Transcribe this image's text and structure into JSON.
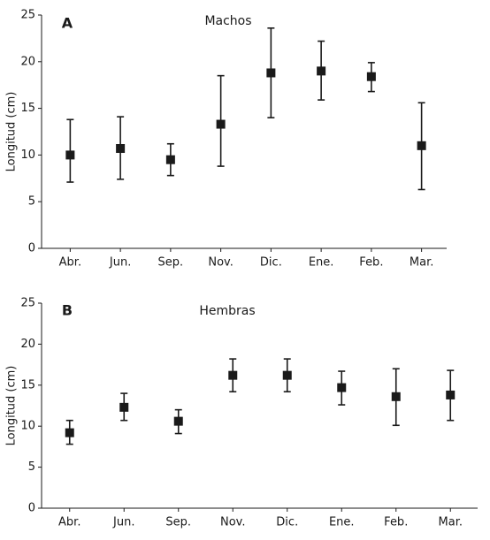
{
  "chart_data": [
    {
      "type": "errorbar",
      "panel_label": "A",
      "title": "Machos",
      "y_label": "Longitud (cm)",
      "categories": [
        "Abr.",
        "Jun.",
        "Sep.",
        "Nov.",
        "Dic.",
        "Ene.",
        "Feb.",
        "Mar."
      ],
      "values": [
        10.0,
        10.7,
        9.5,
        13.3,
        18.8,
        19.0,
        18.4,
        11.0
      ],
      "error_low": [
        7.1,
        7.4,
        7.8,
        8.8,
        14.0,
        15.9,
        16.8,
        6.3
      ],
      "error_high": [
        13.8,
        14.1,
        11.2,
        18.5,
        23.6,
        22.2,
        19.9,
        15.6
      ],
      "color": "#1a1a1a",
      "ylim": [
        0,
        25
      ],
      "yticks": [
        0,
        5,
        10,
        15,
        20,
        25
      ]
    },
    {
      "type": "errorbar",
      "panel_label": "B",
      "title": "Hembras",
      "y_label": "Longitud (cm)",
      "categories": [
        "Abr.",
        "Jun.",
        "Sep.",
        "Nov.",
        "Dic.",
        "Ene.",
        "Feb.",
        "Mar."
      ],
      "values": [
        9.2,
        12.3,
        10.6,
        16.2,
        16.2,
        14.7,
        13.6,
        13.8
      ],
      "error_low": [
        7.8,
        10.7,
        9.1,
        14.2,
        14.2,
        12.6,
        10.1,
        10.7
      ],
      "error_high": [
        10.7,
        14.0,
        12.0,
        18.2,
        18.2,
        16.7,
        17.0,
        16.8
      ],
      "color": "#1a1a1a",
      "ylim": [
        0,
        25
      ],
      "yticks": [
        0,
        5,
        10,
        15,
        20,
        25
      ]
    }
  ]
}
